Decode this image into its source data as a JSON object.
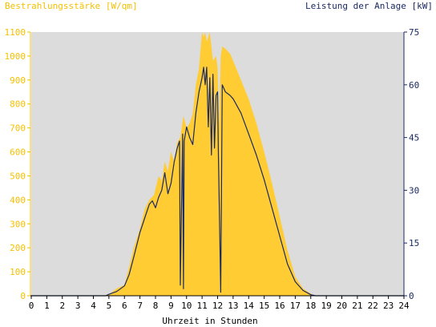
{
  "chart_data": {
    "type": "area",
    "title_left": "Bestrahlungsstärke [W/qm]",
    "title_right": "Leistung der Anlage [kW]",
    "xlabel": "Uhrzeit in Stunden",
    "x_ticks": [
      "0",
      "1",
      "2",
      "3",
      "4",
      "5",
      "6",
      "7",
      "8",
      "9",
      "10",
      "11",
      "12",
      "13",
      "14",
      "15",
      "16",
      "17",
      "18",
      "19",
      "20",
      "21",
      "22",
      "23",
      "24"
    ],
    "y_left_ticks": [
      "0",
      "100",
      "200",
      "300",
      "400",
      "500",
      "600",
      "700",
      "800",
      "900",
      "1000",
      "1100"
    ],
    "y_right_ticks": [
      "0",
      "15",
      "30",
      "45",
      "60",
      "75"
    ],
    "y_left_range": [
      0,
      1100
    ],
    "y_right_range": [
      0,
      75
    ],
    "x_range": [
      0,
      24
    ],
    "colors": {
      "plot_bg": "#dcdcdc",
      "irradiance": "#ffcc33",
      "power": "#1b2a63",
      "left_axis": "#f5c000",
      "right_axis": "#1b2a63"
    },
    "series": [
      {
        "name": "Bestrahlungsstärke [W/qm]",
        "axis": "left",
        "x": [
          0,
          4.6,
          5.0,
          5.5,
          6.0,
          6.3,
          6.6,
          7.0,
          7.3,
          7.6,
          7.9,
          8.2,
          8.4,
          8.6,
          8.8,
          9.0,
          9.2,
          9.4,
          9.6,
          9.8,
          10.0,
          10.2,
          10.4,
          10.6,
          10.8,
          11.0,
          11.1,
          11.2,
          11.3,
          11.5,
          11.7,
          11.9,
          12.0,
          12.1,
          12.2,
          12.3,
          12.5,
          12.8,
          13.0,
          13.5,
          14.0,
          14.5,
          15.0,
          15.5,
          16.0,
          16.5,
          17.0,
          17.5,
          18.0,
          18.3,
          18.6,
          19.0,
          19.5,
          20.0,
          20.5,
          24
        ],
        "y": [
          0,
          0,
          5,
          30,
          45,
          120,
          200,
          280,
          360,
          400,
          420,
          500,
          480,
          560,
          520,
          600,
          560,
          640,
          660,
          750,
          700,
          720,
          760,
          880,
          950,
          1100,
          1080,
          1150,
          1060,
          1100,
          980,
          1000,
          950,
          700,
          1000,
          1040,
          1030,
          1010,
          980,
          900,
          820,
          720,
          600,
          470,
          330,
          190,
          80,
          30,
          8,
          0,
          0,
          0,
          0,
          0,
          0,
          0
        ]
      },
      {
        "name": "Leistung der Anlage [kW]",
        "axis": "right",
        "x": [
          0,
          4.8,
          5.0,
          5.5,
          6.0,
          6.3,
          6.6,
          7.0,
          7.3,
          7.6,
          7.8,
          8.0,
          8.2,
          8.4,
          8.6,
          8.8,
          9.0,
          9.2,
          9.4,
          9.55,
          9.6,
          9.75,
          9.8,
          9.85,
          10.0,
          10.2,
          10.4,
          10.6,
          10.8,
          11.0,
          11.1,
          11.2,
          11.3,
          11.4,
          11.5,
          11.6,
          11.7,
          11.8,
          11.9,
          12.0,
          12.05,
          12.15,
          12.2,
          12.3,
          12.5,
          12.8,
          13.0,
          13.5,
          14.0,
          14.5,
          15.0,
          15.5,
          16.0,
          16.5,
          17.0,
          17.5,
          18.0,
          18.3,
          18.6,
          19.0,
          19.5,
          20.0,
          24
        ],
        "y": [
          0,
          0,
          0.4,
          1.2,
          2.8,
          6,
          11,
          18,
          22,
          26,
          27,
          25,
          28,
          30,
          35,
          29,
          32,
          38,
          42,
          44,
          3,
          46,
          2,
          44,
          48,
          45,
          43,
          52,
          58,
          62,
          65,
          60,
          65,
          48,
          62,
          40,
          63,
          42,
          57,
          58,
          40,
          15,
          1,
          60,
          58,
          57,
          56,
          52,
          46,
          40,
          33,
          25,
          17,
          9,
          4,
          1.5,
          0.3,
          0,
          0,
          0,
          0,
          0,
          0
        ]
      }
    ]
  }
}
